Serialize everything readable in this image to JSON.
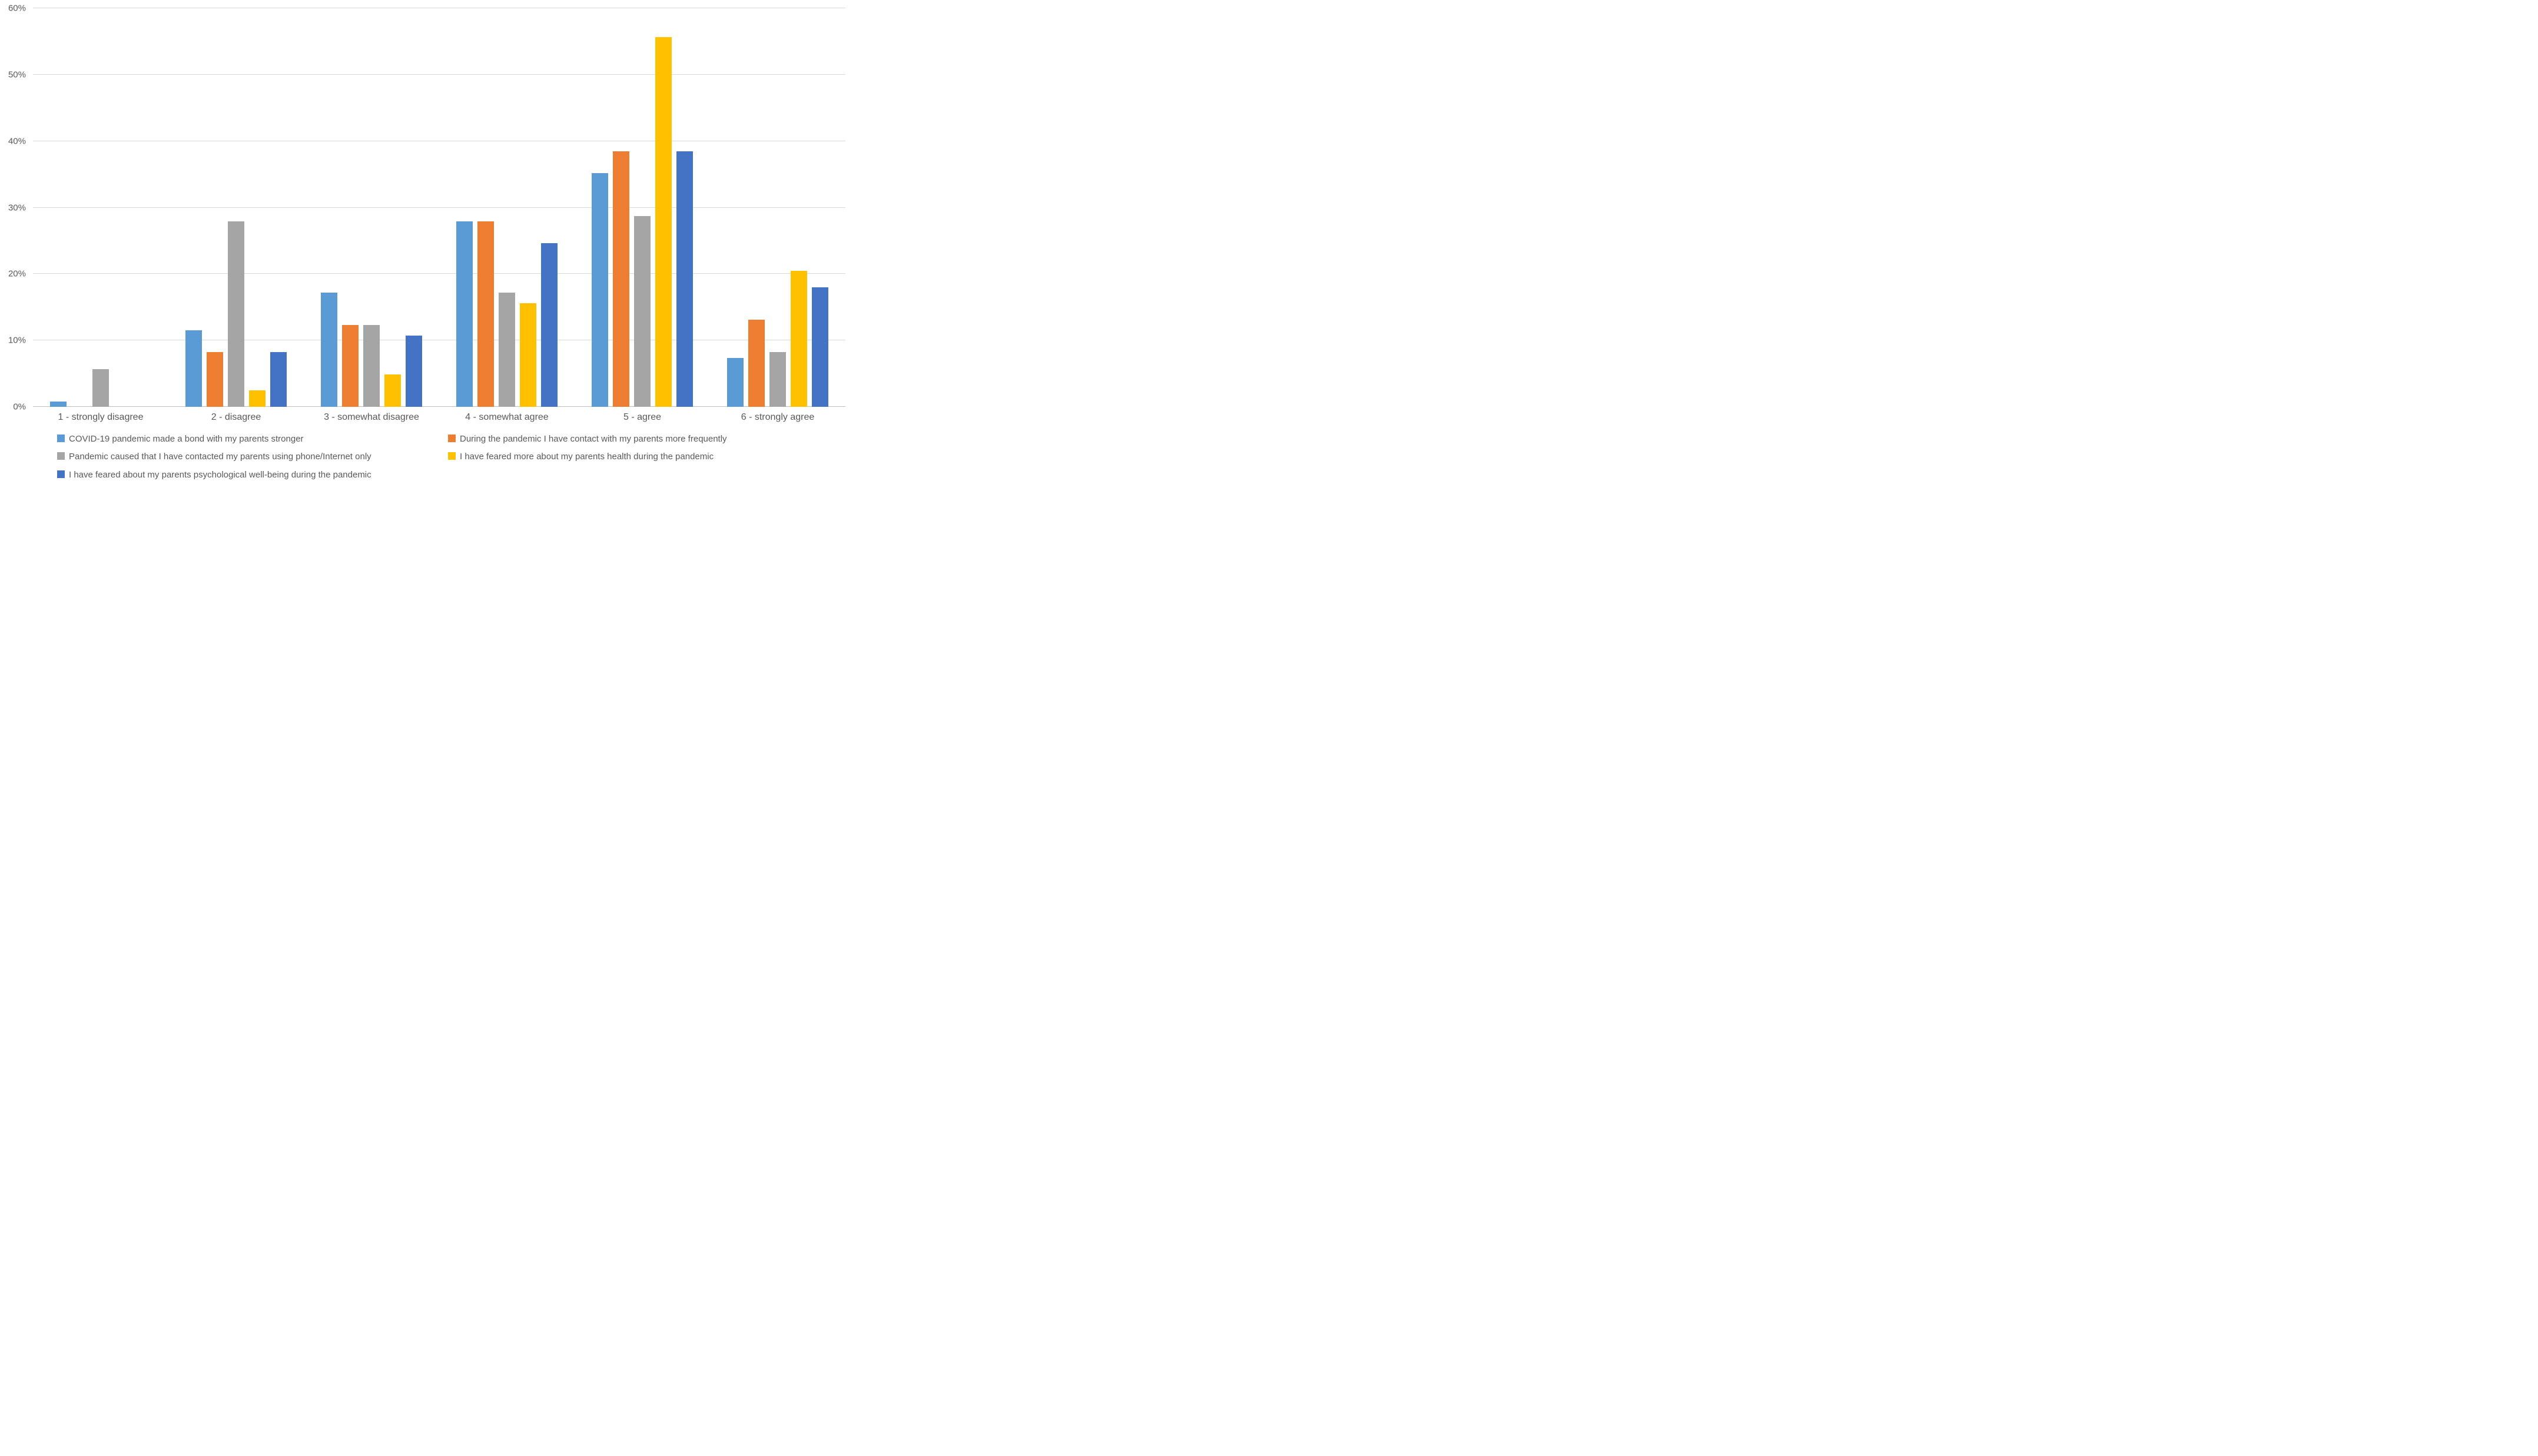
{
  "chart_data": {
    "type": "bar",
    "title": "",
    "xlabel": "",
    "ylabel": "",
    "ylim": [
      0,
      60
    ],
    "grid": true,
    "legend_position": "bottom",
    "yticks": [
      "0%",
      "10%",
      "20%",
      "30%",
      "40%",
      "50%",
      "60%"
    ],
    "ytick_values": [
      0,
      10,
      20,
      30,
      40,
      50,
      60
    ],
    "categories": [
      "1 - strongly disagree",
      "2 - disagree",
      "3 - somewhat disagree",
      "4 - somewhat agree",
      "5 - agree",
      "6 - strongly agree"
    ],
    "series": [
      {
        "name": "COVID-19 pandemic made a bond with my parents stronger",
        "color": "#5B9BD5",
        "values": [
          0.8,
          11.5,
          17.2,
          27.9,
          35.2,
          7.4
        ]
      },
      {
        "name": "During the pandemic I have contact with my parents more frequently",
        "color": "#ED7D31",
        "values": [
          0,
          8.2,
          12.3,
          27.9,
          38.5,
          13.1
        ]
      },
      {
        "name": "Pandemic caused that I have contacted my parents using phone/Internet only",
        "color": "#A5A5A5",
        "values": [
          5.7,
          27.9,
          12.3,
          17.2,
          28.7,
          8.2
        ]
      },
      {
        "name": "I have feared more about my parents health during the pandemic",
        "color": "#FFC000",
        "values": [
          0,
          2.5,
          4.9,
          15.6,
          55.7,
          20.5
        ]
      },
      {
        "name": "I have feared about my parents psychological well-being during the pandemic",
        "color": "#4472C4",
        "values": [
          0,
          8.2,
          10.7,
          24.6,
          38.5,
          18.0
        ]
      }
    ]
  },
  "colors": {
    "gridline": "#D9D9D9",
    "axis_line": "#BFBFBF",
    "label_text": "#595959",
    "background": "#FFFFFF"
  }
}
